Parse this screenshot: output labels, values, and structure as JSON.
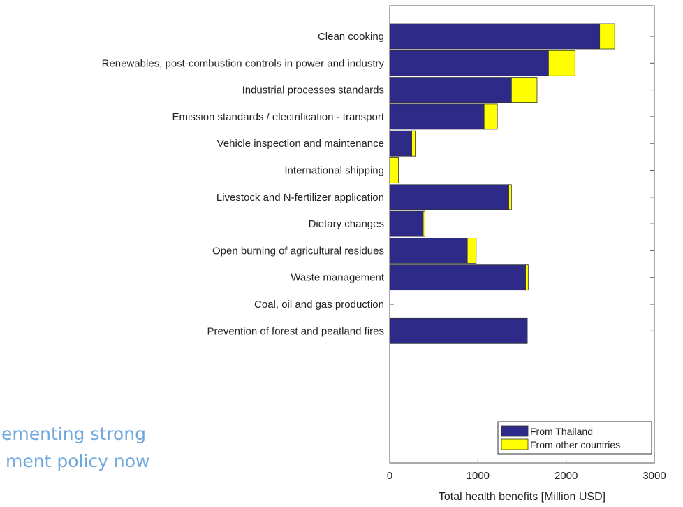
{
  "background_text": {
    "line1": "ementing strong",
    "line2": "ment policy now",
    "color": "#6fa8dc"
  },
  "chart_data": {
    "type": "bar",
    "orientation": "horizontal",
    "stacked": true,
    "categories": [
      "Clean cooking",
      "Renewables, post-combustion controls in power and industry",
      "Industrial processes standards",
      "Emission standards / electrification - transport",
      "Vehicle inspection and maintenance",
      "International shipping",
      "Livestock and N-fertilizer application",
      "Dietary changes",
      "Open burning of agricultural residues",
      "Waste management",
      "Coal, oil and gas production",
      "Prevention of forest and peatland fires"
    ],
    "series": [
      {
        "name": "From Thailand",
        "color": "#2e2a87",
        "values": [
          2380,
          1800,
          1380,
          1070,
          250,
          0,
          1350,
          380,
          880,
          1540,
          0,
          1560
        ]
      },
      {
        "name": "From other countries",
        "color": "#ffff00",
        "values": [
          170,
          300,
          290,
          150,
          40,
          100,
          30,
          20,
          100,
          30,
          0,
          0
        ]
      }
    ],
    "xlabel": "Total health benefits [Million USD]",
    "ylabel": "",
    "title": "",
    "xlim": [
      0,
      3000
    ],
    "xticks": [
      0,
      1000,
      2000,
      3000
    ],
    "legend_position": "bottom-right",
    "grid": false
  }
}
